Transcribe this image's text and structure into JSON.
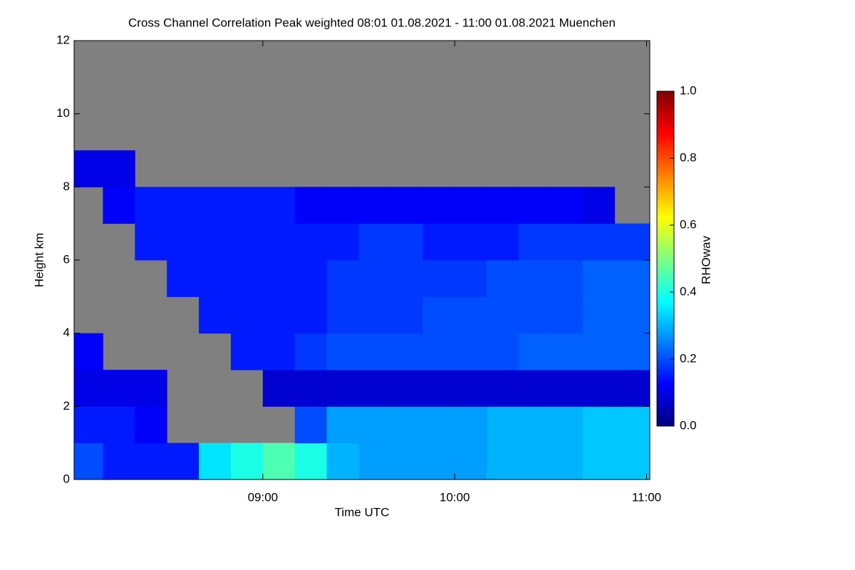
{
  "chart_data": {
    "type": "heatmap",
    "title": "Cross Channel Correlation Peak weighted   08:01 01.08.2021 - 11:00 01.08.2021 Muenchen",
    "xlabel": "Time UTC",
    "ylabel": "Height km",
    "colorbar_label": "RHOwav",
    "xlim": [
      481,
      661
    ],
    "xticks": [
      {
        "value": 540,
        "label": "09:00"
      },
      {
        "value": 600,
        "label": "10:00"
      },
      {
        "value": 660,
        "label": "11:00"
      }
    ],
    "ylim": [
      0,
      12
    ],
    "yticks": [
      0,
      2,
      4,
      6,
      8,
      10,
      12
    ],
    "xbins": [
      481,
      490,
      500,
      510,
      520,
      530,
      540,
      550,
      560,
      570,
      580,
      590,
      600,
      610,
      620,
      630,
      640,
      650,
      661
    ],
    "ybins": [
      0,
      1,
      2,
      3,
      4,
      5,
      6,
      7,
      8,
      9,
      10,
      11,
      12
    ],
    "values": [
      [
        0.2,
        0.15,
        0.15,
        0.15,
        0.35,
        0.4,
        0.45,
        0.4,
        0.3,
        0.28,
        0.28,
        0.28,
        0.28,
        0.3,
        0.3,
        0.3,
        0.32,
        0.32
      ],
      [
        0.15,
        0.15,
        0.12,
        null,
        null,
        null,
        null,
        0.2,
        0.28,
        0.28,
        0.28,
        0.28,
        0.28,
        0.3,
        0.3,
        0.3,
        0.32,
        0.32
      ],
      [
        0.1,
        0.1,
        0.1,
        null,
        null,
        null,
        0.08,
        0.08,
        0.08,
        0.08,
        0.08,
        0.08,
        0.08,
        0.08,
        0.08,
        0.08,
        0.08,
        0.08
      ],
      [
        0.12,
        null,
        null,
        null,
        null,
        0.15,
        0.15,
        0.18,
        0.2,
        0.2,
        0.2,
        0.2,
        0.2,
        0.2,
        0.22,
        0.22,
        0.22,
        0.22
      ],
      [
        null,
        null,
        null,
        null,
        0.15,
        0.15,
        0.15,
        0.15,
        0.18,
        0.18,
        0.18,
        0.2,
        0.2,
        0.2,
        0.2,
        0.2,
        0.22,
        0.22
      ],
      [
        null,
        null,
        null,
        0.15,
        0.15,
        0.15,
        0.15,
        0.15,
        0.18,
        0.18,
        0.18,
        0.18,
        0.18,
        0.2,
        0.2,
        0.2,
        0.22,
        0.22
      ],
      [
        null,
        null,
        0.15,
        0.15,
        0.15,
        0.15,
        0.15,
        0.15,
        0.15,
        0.18,
        0.18,
        0.15,
        0.15,
        0.15,
        0.18,
        0.18,
        0.18,
        0.18
      ],
      [
        null,
        0.12,
        0.15,
        0.15,
        0.15,
        0.15,
        0.15,
        0.12,
        0.12,
        0.12,
        0.12,
        0.12,
        0.12,
        0.12,
        0.12,
        0.12,
        0.1,
        null
      ],
      [
        0.1,
        0.1,
        null,
        null,
        null,
        null,
        null,
        null,
        null,
        null,
        null,
        null,
        null,
        null,
        null,
        null,
        null,
        null
      ],
      [
        null,
        null,
        null,
        null,
        null,
        null,
        null,
        null,
        null,
        null,
        null,
        null,
        null,
        null,
        null,
        null,
        null,
        null
      ],
      [
        null,
        null,
        null,
        null,
        null,
        null,
        null,
        null,
        null,
        null,
        null,
        null,
        null,
        null,
        null,
        null,
        null,
        null
      ],
      [
        null,
        null,
        null,
        null,
        null,
        null,
        null,
        null,
        null,
        null,
        null,
        null,
        null,
        null,
        null,
        null,
        null,
        null
      ]
    ],
    "colormap": "jet",
    "missing_color": "#808080",
    "clim": [
      0,
      1
    ],
    "cticks": [
      {
        "value": 0,
        "label": "0.0"
      },
      0.2,
      0.4,
      0.6,
      0.8,
      {
        "value": 1,
        "label": "1.0"
      }
    ]
  }
}
